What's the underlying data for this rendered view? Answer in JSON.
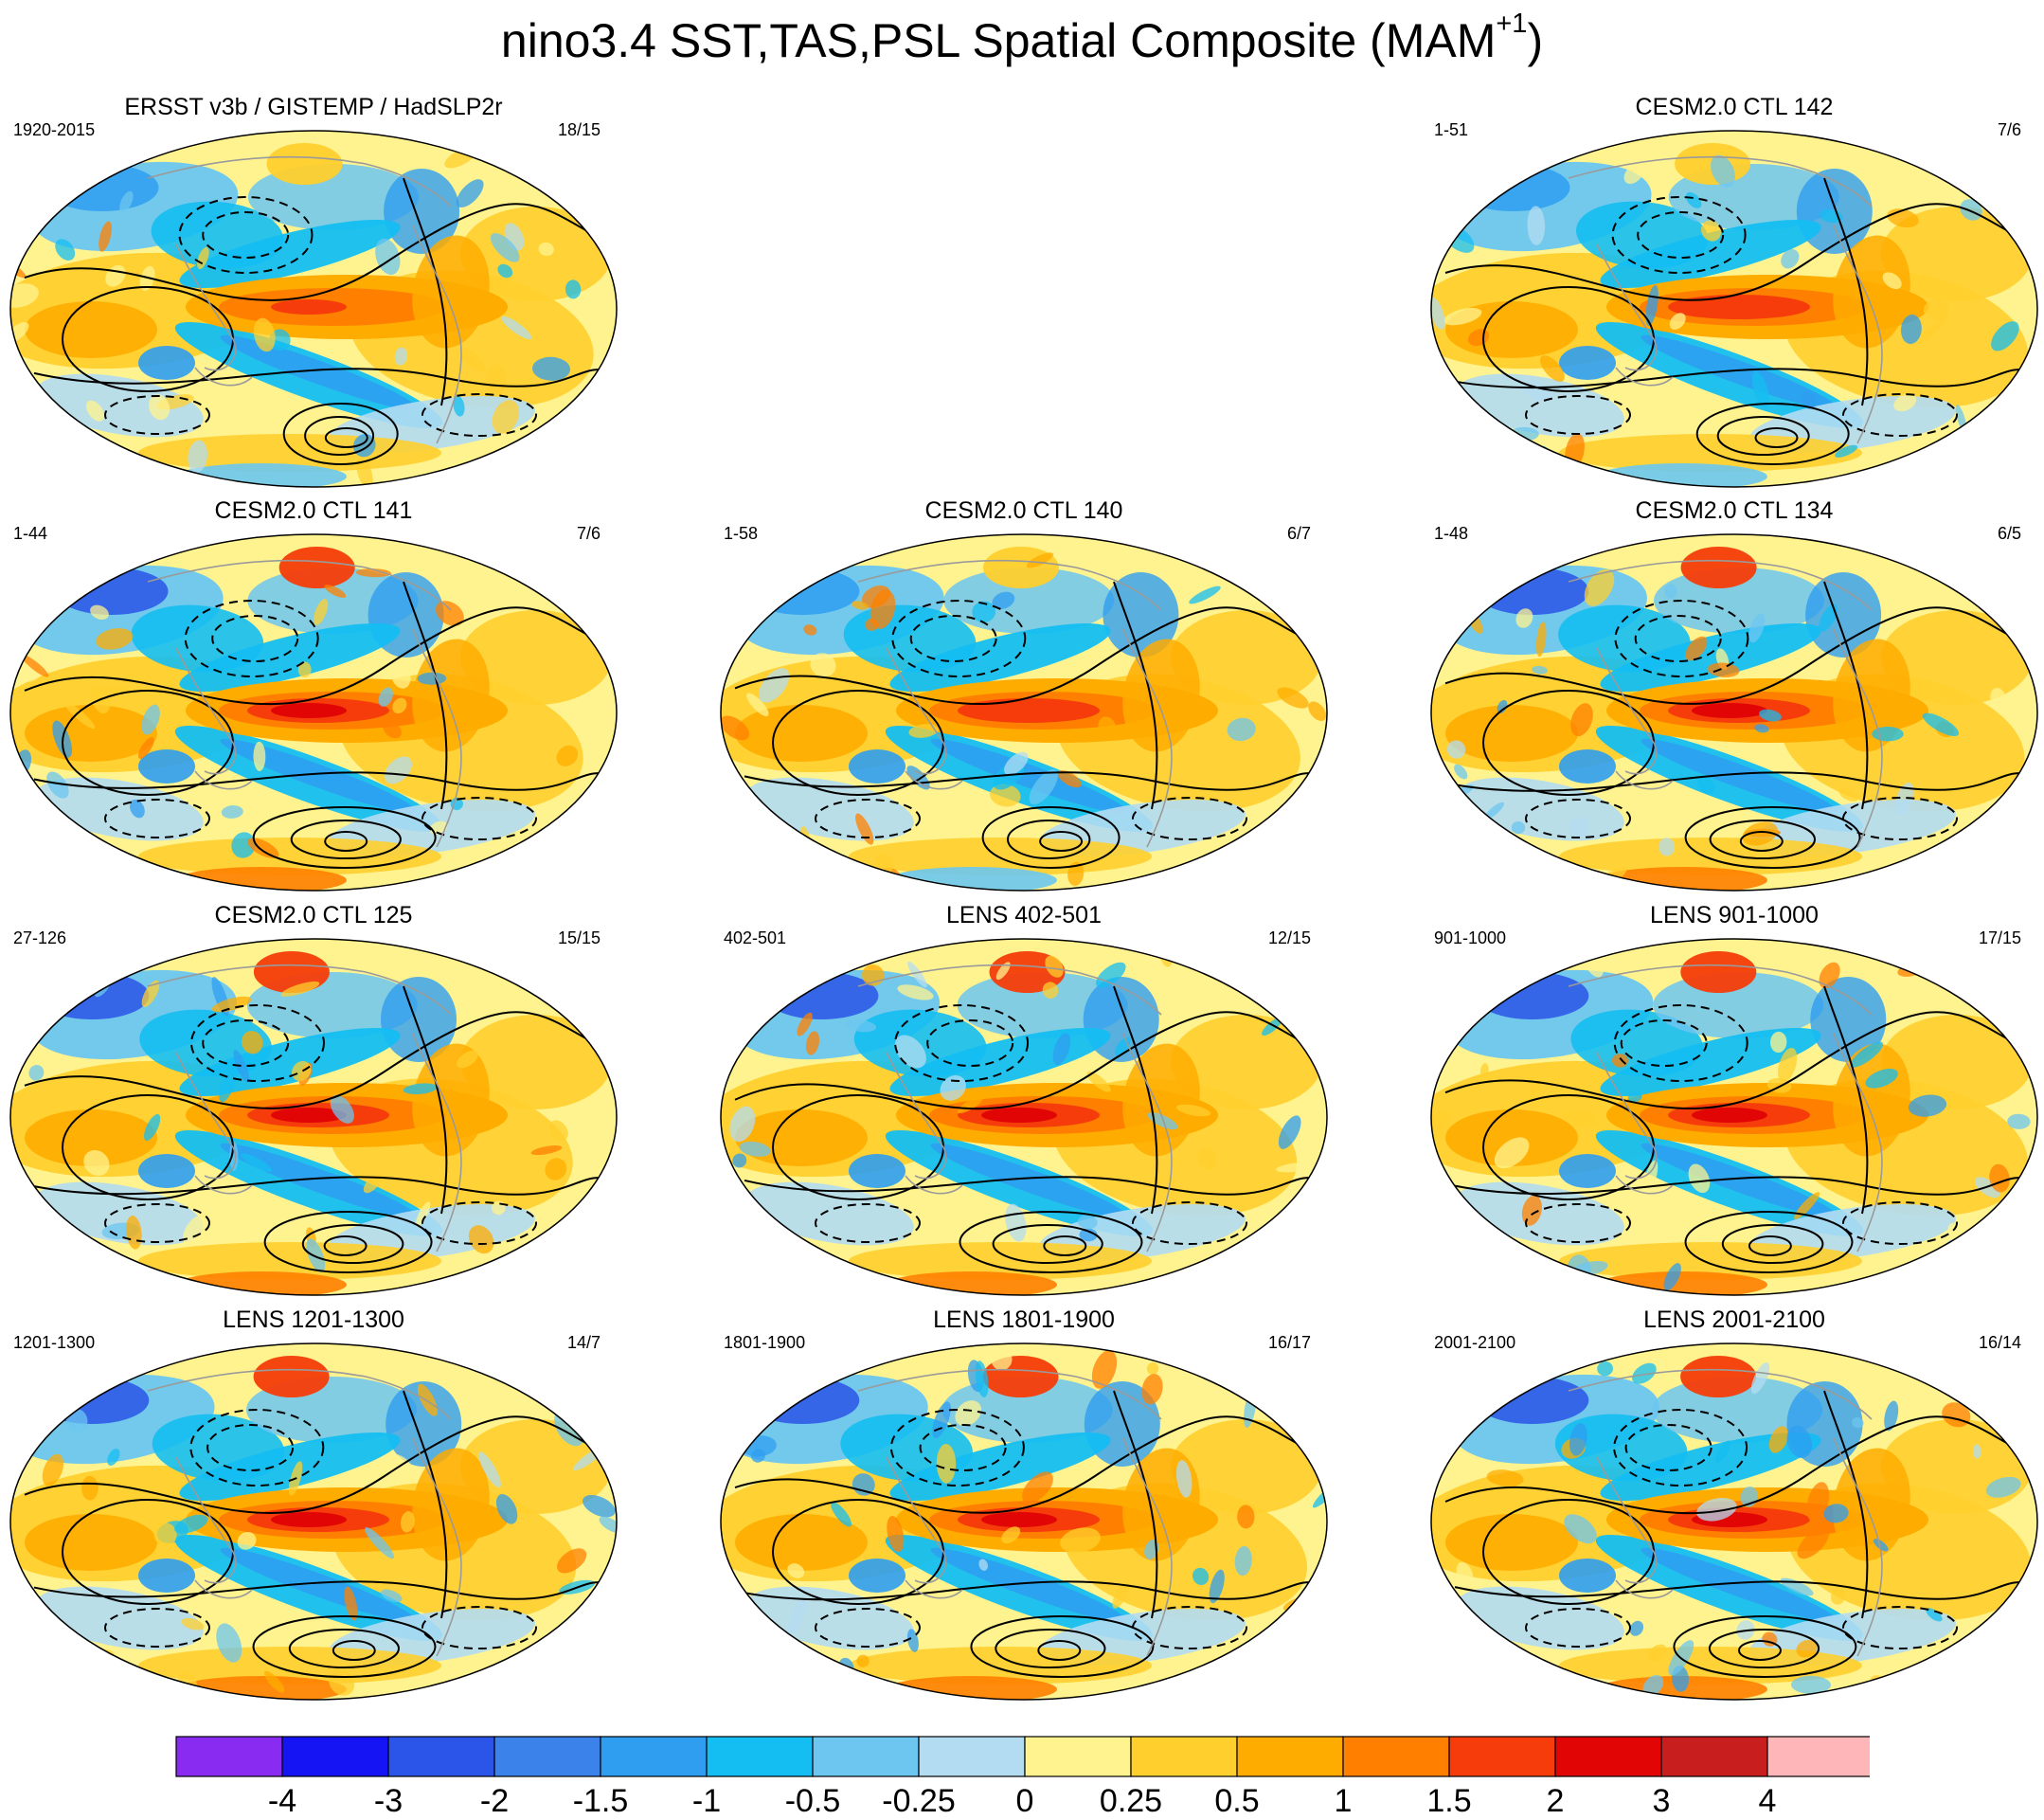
{
  "title": {
    "main": "nino3.4 SST,TAS,PSL Spatial Composite (MAM",
    "sup": "+1",
    "close": ")"
  },
  "chart_data": {
    "type": "heatmap",
    "projection": "Hammer/Mollweide global map",
    "variables": [
      "SST",
      "TAS",
      "PSL"
    ],
    "season": "MAM+1",
    "contour_overlay": "PSL (solid positive, dashed negative)",
    "panels": [
      {
        "title": "ERSST v3b / GISTEMP / HadSLP2r",
        "years": "1920-2015",
        "count": "18/15",
        "row": 0,
        "col": 0,
        "intensity": 0.75,
        "seed": 3
      },
      {
        "title": "CESM2.0 CTL 142",
        "years": "1-51",
        "count": "7/6",
        "row": 0,
        "col": 2,
        "intensity": 1.0,
        "seed": 7
      },
      {
        "title": "CESM2.0 CTL 141",
        "years": "1-44",
        "count": "7/6",
        "row": 1,
        "col": 0,
        "intensity": 1.2,
        "seed": 11
      },
      {
        "title": "CESM2.0 CTL 140",
        "years": "1-58",
        "count": "6/7",
        "row": 1,
        "col": 1,
        "intensity": 0.9,
        "seed": 13
      },
      {
        "title": "CESM2.0 CTL 134",
        "years": "1-48",
        "count": "6/5",
        "row": 1,
        "col": 2,
        "intensity": 1.15,
        "seed": 17
      },
      {
        "title": "CESM2.0 CTL 125",
        "years": "27-126",
        "count": "15/15",
        "row": 2,
        "col": 0,
        "intensity": 1.1,
        "seed": 19
      },
      {
        "title": "LENS 402-501",
        "years": "402-501",
        "count": "12/15",
        "row": 2,
        "col": 1,
        "intensity": 1.2,
        "seed": 23
      },
      {
        "title": "LENS 901-1000",
        "years": "901-1000",
        "count": "17/15",
        "row": 2,
        "col": 2,
        "intensity": 1.1,
        "seed": 29
      },
      {
        "title": "LENS 1201-1300",
        "years": "1201-1300",
        "count": "14/7",
        "row": 3,
        "col": 0,
        "intensity": 1.2,
        "seed": 31
      },
      {
        "title": "LENS 1801-1900",
        "years": "1801-1900",
        "count": "16/17",
        "row": 3,
        "col": 1,
        "intensity": 1.2,
        "seed": 37
      },
      {
        "title": "LENS 2001-2100",
        "years": "2001-2100",
        "count": "16/14",
        "row": 3,
        "col": 2,
        "intensity": 1.2,
        "seed": 41
      }
    ],
    "colorbar": {
      "levels": [
        "-4",
        "-3",
        "-2",
        "-1.5",
        "-1",
        "-0.5",
        "-0.25",
        "0",
        "0.25",
        "0.5",
        "1",
        "1.5",
        "2",
        "3",
        "4"
      ],
      "colors": [
        "#8a2bf2",
        "#1414f5",
        "#2a55e8",
        "#3b82ea",
        "#2f9df0",
        "#14bef2",
        "#6cc6f0",
        "#b3dcf2",
        "#fff38f",
        "#ffcf2e",
        "#ffac00",
        "#ff8000",
        "#f53c0a",
        "#e10505",
        "#c81e1e",
        "#ffb6b9"
      ]
    }
  }
}
